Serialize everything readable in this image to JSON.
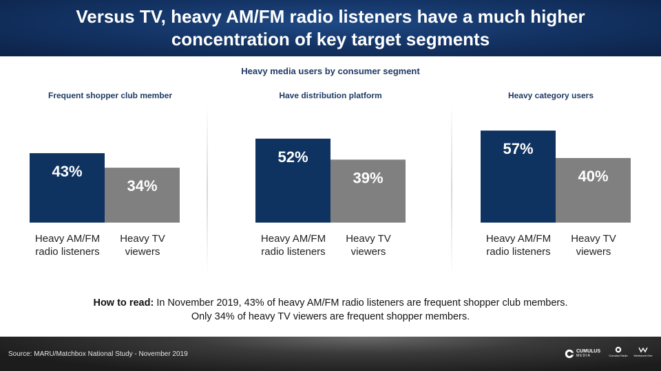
{
  "header": {
    "title": "Versus TV, heavy AM/FM radio listeners have a much higher concentration of key target segments"
  },
  "subtitle": "Heavy media users by consumer segment",
  "colors": {
    "radio": "#0f3361",
    "tv": "#808080",
    "header": "#143567"
  },
  "chart_data": [
    {
      "type": "bar",
      "title": "Frequent shopper club member",
      "categories": [
        "Heavy AM/FM radio listeners",
        "Heavy TV viewers"
      ],
      "values": [
        43,
        34
      ],
      "labels": [
        "43%",
        "34%"
      ],
      "unit": "%",
      "ylim": [
        0,
        100
      ]
    },
    {
      "type": "bar",
      "title": "Have distribution platform",
      "categories": [
        "Heavy AM/FM radio listeners",
        "Heavy TV viewers"
      ],
      "values": [
        52,
        39
      ],
      "labels": [
        "52%",
        "39%"
      ],
      "unit": "%",
      "ylim": [
        0,
        100
      ]
    },
    {
      "type": "bar",
      "title": "Heavy category users",
      "categories": [
        "Heavy AM/FM radio listeners",
        "Heavy TV viewers"
      ],
      "values": [
        57,
        40
      ],
      "labels": [
        "57%",
        "40%"
      ],
      "unit": "%",
      "ylim": [
        0,
        100
      ]
    }
  ],
  "how_to": {
    "lead": "How to read:",
    "line1": "In November 2019, 43% of heavy AM/FM radio listeners are frequent shopper club members.",
    "line2": "Only 34% of heavy TV viewers are frequent shopper members."
  },
  "footer": {
    "source": "Source: MARU/Matchbox National Study - November 2019",
    "logo_main": "CUMULUS",
    "logo_main_sub": "MEDIA",
    "logo_2": "Cumulus Radio",
    "logo_3": "Westwood One"
  }
}
